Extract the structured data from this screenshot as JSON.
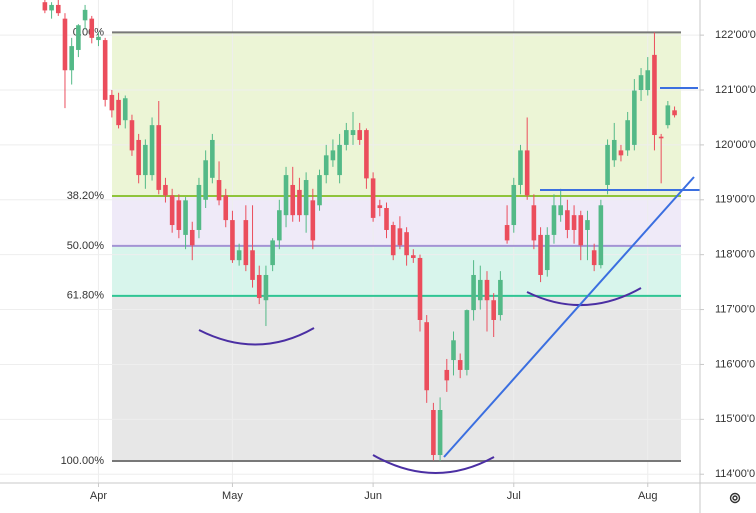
{
  "chart_data": {
    "type": "candlestick",
    "up_color": "#53b987",
    "down_color": "#eb4d5c",
    "grid": true,
    "xlim": [
      -14.7,
      89.8
    ],
    "ylim": [
      113.84,
      122.64
    ],
    "xticks": [
      {
        "value": 0,
        "label": "Apr"
      },
      {
        "value": 20,
        "label": "May"
      },
      {
        "value": 41,
        "label": "Jun"
      },
      {
        "value": 62,
        "label": "Jul"
      },
      {
        "value": 82,
        "label": "Aug"
      }
    ],
    "yticks": [
      {
        "value": 114,
        "label": "114'00'0"
      },
      {
        "value": 115,
        "label": "115'00'0"
      },
      {
        "value": 116,
        "label": "116'00'0"
      },
      {
        "value": 117,
        "label": "117'00'0"
      },
      {
        "value": 118,
        "label": "118'00'0"
      },
      {
        "value": 119,
        "label": "119'00'0"
      },
      {
        "value": 120,
        "label": "120'00'0"
      },
      {
        "value": 121,
        "label": "121'00'0"
      },
      {
        "value": 122,
        "label": "122'00'0"
      }
    ],
    "fib_levels": [
      {
        "label": "0.00%",
        "price": 122.05,
        "color": "#787878"
      },
      {
        "label": "38.20%",
        "price": 119.07,
        "color": "#8fc43a"
      },
      {
        "label": "50.00%",
        "price": 118.16,
        "color": "#a394d4"
      },
      {
        "label": "61.80%",
        "price": 117.25,
        "color": "#2fc594"
      },
      {
        "label": "100.00%",
        "price": 114.24,
        "color": "#787878"
      }
    ],
    "zone_colors": [
      "#ecf5d6",
      "#efeaf8",
      "#d8f5ec",
      "#e7e7e7"
    ],
    "x": [
      -8,
      -7,
      -6,
      -5,
      -4,
      -3,
      -2,
      -1,
      0,
      1,
      2,
      3,
      4,
      5,
      6,
      7,
      8,
      9,
      10,
      11,
      12,
      13,
      14,
      15,
      16,
      17,
      18,
      19,
      20,
      21,
      22,
      23,
      24,
      25,
      26,
      27,
      28,
      29,
      30,
      31,
      32,
      33,
      34,
      35,
      36,
      37,
      38,
      39,
      40,
      41,
      42,
      43,
      44,
      45,
      46,
      47,
      48,
      49,
      50,
      51,
      52,
      53,
      54,
      55,
      56,
      57,
      58,
      59,
      60,
      61,
      62,
      63,
      64,
      65,
      66,
      67,
      68,
      69,
      70,
      71,
      72,
      73,
      74,
      75,
      76,
      77,
      78,
      79,
      80,
      81,
      82,
      83,
      84,
      85,
      86
    ],
    "ohlc": [
      [
        122.6,
        122.64,
        122.4,
        122.45
      ],
      [
        122.45,
        122.6,
        122.3,
        122.55
      ],
      [
        122.55,
        122.64,
        122.35,
        122.4
      ],
      [
        122.3,
        122.4,
        120.67,
        121.36
      ],
      [
        121.36,
        121.95,
        121.1,
        121.8
      ],
      [
        121.73,
        122.2,
        121.6,
        122.18
      ],
      [
        122.27,
        122.55,
        122.1,
        122.46
      ],
      [
        122.3,
        122.35,
        121.85,
        121.95
      ],
      [
        121.91,
        122.05,
        121.8,
        121.97
      ],
      [
        121.91,
        121.95,
        120.7,
        120.82
      ],
      [
        120.91,
        121.0,
        120.5,
        120.63
      ],
      [
        120.82,
        120.95,
        120.3,
        120.36
      ],
      [
        120.45,
        120.9,
        120.3,
        120.85
      ],
      [
        120.45,
        120.55,
        119.8,
        119.9
      ],
      [
        120.09,
        120.2,
        119.3,
        119.45
      ],
      [
        119.45,
        120.1,
        119.2,
        120.0
      ],
      [
        119.45,
        120.5,
        119.35,
        120.36
      ],
      [
        120.36,
        120.8,
        119.1,
        119.18
      ],
      [
        119.27,
        119.4,
        118.95,
        119.08
      ],
      [
        119.08,
        119.2,
        118.4,
        118.54
      ],
      [
        118.99,
        119.1,
        118.3,
        118.45
      ],
      [
        118.36,
        119.05,
        118.1,
        118.99
      ],
      [
        118.45,
        118.6,
        117.9,
        118.17
      ],
      [
        118.45,
        119.4,
        118.3,
        119.27
      ],
      [
        119.0,
        119.9,
        118.85,
        119.72
      ],
      [
        119.4,
        120.2,
        119.3,
        120.09
      ],
      [
        119.36,
        119.7,
        118.9,
        118.99
      ],
      [
        119.08,
        119.2,
        118.5,
        118.63
      ],
      [
        118.63,
        118.8,
        117.85,
        117.9
      ],
      [
        117.9,
        118.2,
        117.8,
        118.08
      ],
      [
        118.63,
        118.9,
        117.7,
        117.81
      ],
      [
        118.08,
        118.9,
        117.4,
        117.54
      ],
      [
        117.63,
        117.8,
        117.1,
        117.21
      ],
      [
        117.17,
        117.8,
        116.7,
        117.63
      ],
      [
        117.81,
        118.3,
        117.7,
        118.26
      ],
      [
        118.26,
        119.0,
        118.1,
        118.81
      ],
      [
        118.72,
        119.6,
        118.5,
        119.45
      ],
      [
        119.27,
        119.6,
        118.6,
        118.72
      ],
      [
        119.18,
        119.4,
        118.6,
        118.72
      ],
      [
        118.72,
        119.5,
        118.4,
        119.36
      ],
      [
        118.99,
        119.2,
        118.1,
        118.26
      ],
      [
        118.9,
        119.55,
        118.8,
        119.45
      ],
      [
        119.45,
        120.0,
        119.3,
        119.81
      ],
      [
        119.72,
        120.1,
        119.6,
        119.9
      ],
      [
        119.45,
        120.2,
        119.3,
        120.0
      ],
      [
        120.0,
        120.4,
        119.9,
        120.27
      ],
      [
        120.18,
        120.6,
        120.0,
        120.27
      ],
      [
        120.27,
        120.4,
        120.0,
        120.09
      ],
      [
        120.27,
        120.3,
        119.2,
        119.39
      ],
      [
        119.39,
        119.5,
        118.6,
        118.67
      ],
      [
        118.9,
        119.0,
        118.7,
        118.85
      ],
      [
        118.85,
        118.95,
        118.3,
        118.45
      ],
      [
        118.54,
        118.6,
        117.9,
        117.99
      ],
      [
        118.48,
        118.7,
        118.1,
        118.17
      ],
      [
        118.41,
        118.5,
        117.8,
        117.99
      ],
      [
        117.99,
        118.1,
        117.85,
        117.94
      ],
      [
        117.94,
        118.0,
        116.6,
        116.81
      ],
      [
        116.77,
        116.9,
        115.3,
        115.53
      ],
      [
        115.17,
        115.3,
        114.25,
        114.35
      ],
      [
        114.35,
        115.4,
        114.24,
        115.17
      ],
      [
        115.9,
        116.1,
        115.5,
        115.71
      ],
      [
        116.08,
        116.6,
        115.8,
        116.44
      ],
      [
        116.08,
        116.2,
        115.75,
        115.9
      ],
      [
        115.9,
        117.0,
        115.8,
        116.99
      ],
      [
        116.99,
        117.9,
        116.8,
        117.63
      ],
      [
        117.17,
        117.8,
        117.0,
        117.54
      ],
      [
        117.54,
        117.7,
        116.6,
        117.17
      ],
      [
        117.17,
        117.3,
        116.5,
        116.81
      ],
      [
        116.9,
        117.7,
        116.8,
        117.54
      ],
      [
        118.54,
        118.9,
        118.2,
        118.26
      ],
      [
        118.54,
        119.4,
        118.4,
        119.27
      ],
      [
        119.27,
        120.0,
        119.1,
        119.9
      ],
      [
        119.9,
        120.5,
        119.0,
        119.08
      ],
      [
        118.9,
        119.1,
        118.1,
        118.26
      ],
      [
        118.36,
        118.5,
        117.5,
        117.63
      ],
      [
        117.72,
        118.5,
        117.6,
        118.36
      ],
      [
        118.36,
        119.1,
        118.2,
        118.9
      ],
      [
        118.72,
        119.2,
        118.6,
        118.9
      ],
      [
        118.81,
        119.0,
        118.3,
        118.45
      ],
      [
        118.72,
        118.9,
        118.2,
        118.45
      ],
      [
        118.72,
        118.8,
        117.9,
        118.17
      ],
      [
        118.45,
        118.8,
        117.9,
        118.63
      ],
      [
        118.08,
        118.2,
        117.7,
        117.81
      ],
      [
        117.81,
        119.0,
        117.75,
        118.9
      ],
      [
        119.27,
        120.1,
        119.1,
        120.0
      ],
      [
        119.72,
        120.4,
        119.6,
        120.09
      ],
      [
        119.9,
        120.0,
        119.7,
        119.81
      ],
      [
        119.9,
        120.6,
        119.8,
        120.45
      ],
      [
        120.0,
        121.2,
        119.9,
        120.99
      ],
      [
        121.0,
        121.4,
        120.8,
        121.27
      ],
      [
        121.0,
        121.6,
        120.9,
        121.36
      ],
      [
        121.64,
        122.05,
        119.9,
        120.18
      ],
      [
        120.15,
        120.2,
        119.3,
        120.12
      ],
      [
        120.36,
        120.8,
        120.3,
        120.72
      ],
      [
        120.63,
        120.7,
        120.5,
        120.54
      ]
    ]
  }
}
